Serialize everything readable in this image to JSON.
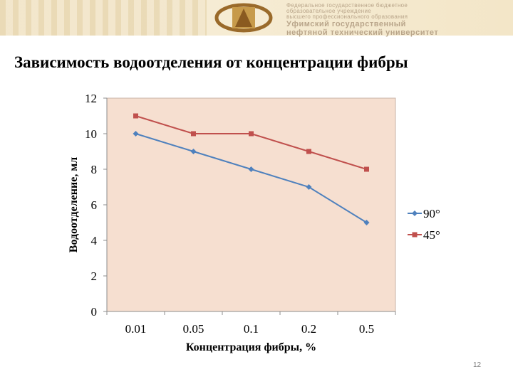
{
  "slide": {
    "title": "Зависимость водоотделения от концентрации фибры",
    "page_number": "12"
  },
  "banner": {
    "line1": "Федеральное государственное бюджетное",
    "line2": "образовательное учреждение",
    "line3": "высшего профессионального образования",
    "line4": "Уфимский государственный",
    "line5": "нефтяной технический университет"
  },
  "colors": {
    "plot_bg": "#f6dfd0",
    "series_90": "#4f81bd",
    "series_45": "#c0504d"
  },
  "chart_data": {
    "type": "line",
    "categories": [
      "0.01",
      "0.05",
      "0.1",
      "0.2",
      "0.5"
    ],
    "series": [
      {
        "name": "90°",
        "values": [
          10,
          9,
          8,
          7,
          5
        ],
        "color": "#4f81bd",
        "marker": "diamond"
      },
      {
        "name": "45°",
        "values": [
          11,
          10,
          10,
          9,
          8
        ],
        "color": "#c0504d",
        "marker": "square"
      }
    ],
    "xlabel": "Концентрация фибры, %",
    "ylabel": "Водоотделение, мл",
    "ylim": [
      0,
      12
    ],
    "yticks": [
      "0",
      "2",
      "4",
      "6",
      "8",
      "10",
      "12"
    ],
    "legend": "right",
    "grid": false
  }
}
